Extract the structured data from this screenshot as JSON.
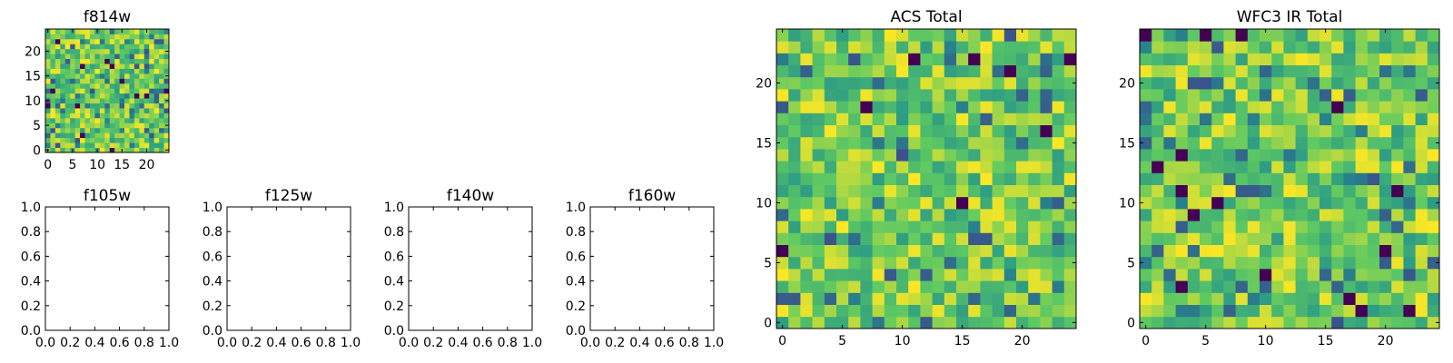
{
  "chart_data": [
    {
      "type": "heatmap",
      "title": "f814w",
      "xlabel": "",
      "ylabel": "",
      "xlim": [
        -0.5,
        24.5
      ],
      "ylim": [
        -0.5,
        24.5
      ],
      "xticks": [
        0,
        5,
        10,
        15,
        20
      ],
      "yticks": [
        0,
        5,
        10,
        15,
        20
      ],
      "grid": false,
      "colormap": "viridis",
      "rows": 25,
      "cols": 25,
      "seed": 814,
      "note_values": "25x25 random pixel grid; z values in [0,1]"
    },
    {
      "type": "heatmap",
      "title": "f105w",
      "xlim": [
        0,
        1
      ],
      "ylim": [
        0,
        1
      ],
      "xticks": [
        "0.0",
        "0.2",
        "0.4",
        "0.6",
        "0.8",
        "1.0"
      ],
      "yticks": [
        "0.0",
        "0.2",
        "0.4",
        "0.6",
        "0.8",
        "1.0"
      ],
      "empty": true
    },
    {
      "type": "heatmap",
      "title": "f125w",
      "xlim": [
        0,
        1
      ],
      "ylim": [
        0,
        1
      ],
      "xticks": [
        "0.0",
        "0.2",
        "0.4",
        "0.6",
        "0.8",
        "1.0"
      ],
      "yticks": [
        "0.0",
        "0.2",
        "0.4",
        "0.6",
        "0.8",
        "1.0"
      ],
      "empty": true
    },
    {
      "type": "heatmap",
      "title": "f140w",
      "xlim": [
        0,
        1
      ],
      "ylim": [
        0,
        1
      ],
      "xticks": [
        "0.0",
        "0.2",
        "0.4",
        "0.6",
        "0.8",
        "1.0"
      ],
      "yticks": [
        "0.0",
        "0.2",
        "0.4",
        "0.6",
        "0.8",
        "1.0"
      ],
      "empty": true
    },
    {
      "type": "heatmap",
      "title": "f160w",
      "xlim": [
        0,
        1
      ],
      "ylim": [
        0,
        1
      ],
      "xticks": [
        "0.0",
        "0.2",
        "0.4",
        "0.6",
        "0.8",
        "1.0"
      ],
      "yticks": [
        "0.0",
        "0.2",
        "0.4",
        "0.6",
        "0.8",
        "1.0"
      ],
      "empty": true
    },
    {
      "type": "heatmap",
      "title": "ACS Total",
      "xlim": [
        -0.5,
        24.5
      ],
      "ylim": [
        -0.5,
        24.5
      ],
      "xticks": [
        0,
        5,
        10,
        15,
        20
      ],
      "yticks": [
        0,
        5,
        10,
        15,
        20
      ],
      "grid": false,
      "colormap": "viridis",
      "rows": 25,
      "cols": 25,
      "seed": 2024
    },
    {
      "type": "heatmap",
      "title": "WFC3 IR Total",
      "xlim": [
        -0.5,
        24.5
      ],
      "ylim": [
        -0.5,
        24.5
      ],
      "xticks": [
        0,
        5,
        10,
        15,
        20
      ],
      "yticks": [
        0,
        5,
        10,
        15,
        20
      ],
      "grid": false,
      "colormap": "viridis",
      "rows": 25,
      "cols": 25,
      "seed": 3113
    }
  ],
  "colors": {
    "viridis": [
      "#440154",
      "#3b528b",
      "#21918c",
      "#5ec962",
      "#fde725"
    ]
  }
}
